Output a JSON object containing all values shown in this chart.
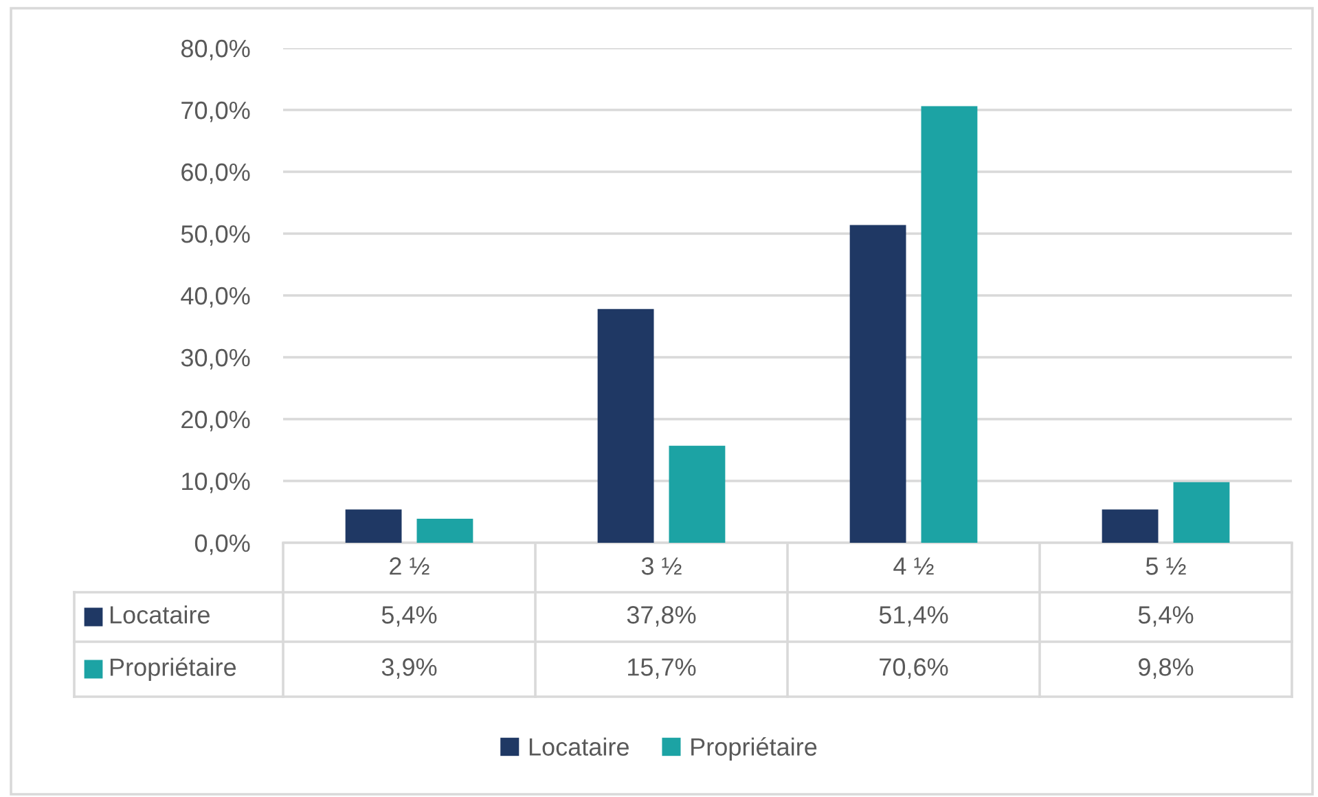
{
  "chart_data": {
    "type": "bar",
    "categories": [
      "2 ½",
      "3 ½",
      "4 ½",
      "5 ½"
    ],
    "series": [
      {
        "name": "Locataire",
        "color": "#1f3864",
        "values": [
          5.4,
          37.8,
          51.4,
          5.4
        ],
        "value_labels": [
          "5,4%",
          "37,8%",
          "51,4%",
          "5,4%"
        ]
      },
      {
        "name": "Propriétaire",
        "color": "#1ca3a4",
        "values": [
          3.9,
          15.7,
          70.6,
          9.8
        ],
        "value_labels": [
          "3,9%",
          "15,7%",
          "70,6%",
          "9,8%"
        ]
      }
    ],
    "ylim": [
      0,
      80
    ],
    "yticks": [
      {
        "value": 0,
        "label": "0,0%"
      },
      {
        "value": 10,
        "label": "10,0%"
      },
      {
        "value": 20,
        "label": "20,0%"
      },
      {
        "value": 30,
        "label": "30,0%"
      },
      {
        "value": 40,
        "label": "40,0%"
      },
      {
        "value": 50,
        "label": "50,0%"
      },
      {
        "value": 60,
        "label": "60,0%"
      },
      {
        "value": 70,
        "label": "70,0%"
      },
      {
        "value": 80,
        "label": "80,0%"
      }
    ],
    "grid": "y",
    "legend": "bottom"
  }
}
